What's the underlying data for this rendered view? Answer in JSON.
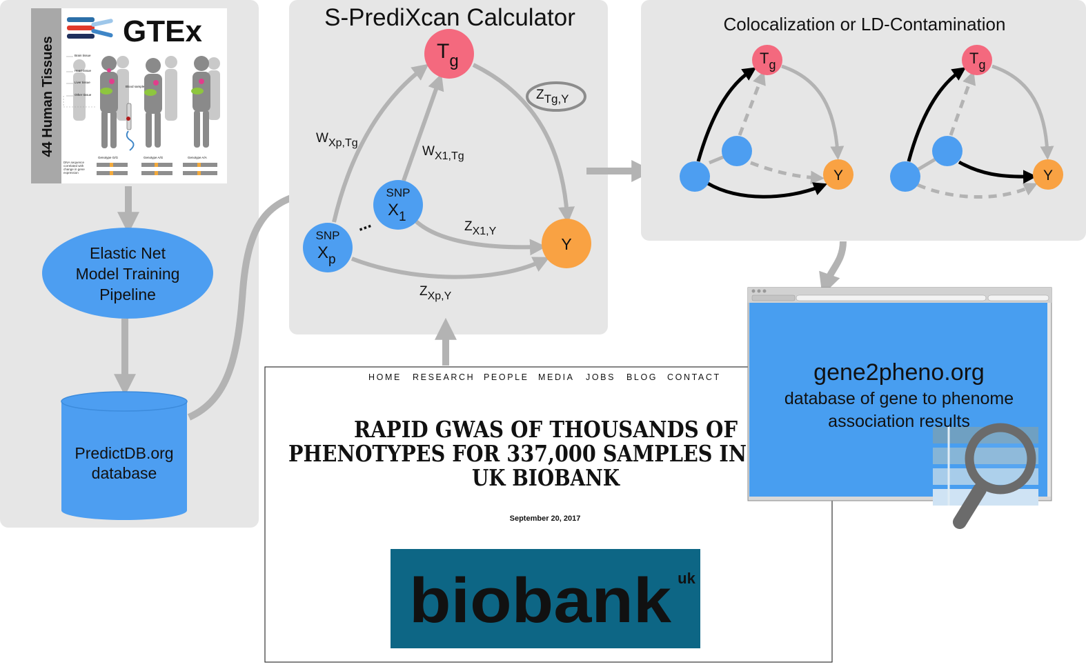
{
  "gtex": {
    "logo_text": "GTEx",
    "side_label": "44 Human Tissues",
    "tissue_labels": [
      "Brain tissue",
      "Heart tissue",
      "Liver tissue",
      "Other tissue"
    ],
    "blood_label": "Blood sample",
    "dna_caption": "DNA sequence correlated with change in gene expression",
    "genotypes": [
      "Genotype G/G",
      "Genotype A/G",
      "Genotype A/A"
    ]
  },
  "pipeline": {
    "elastic_net": [
      "Elastic Net",
      "Model Training",
      "Pipeline"
    ],
    "predictdb": [
      "PredictDB.org",
      "database"
    ]
  },
  "calculator": {
    "title": "S-PrediXcan Calculator",
    "node_tg_main": "T",
    "node_tg_sub": "g",
    "node_x1_top": "SNP",
    "node_x1_main": "X",
    "node_x1_sub": "1",
    "node_xp_top": "SNP",
    "node_xp_main": "X",
    "node_xp_sub": "p",
    "node_y": "Y",
    "dots": "...",
    "w_xp_main": "W",
    "w_xp_sub": "Xp,Tg",
    "w_x1_main": "W",
    "w_x1_sub": "X1,Tg",
    "z_x1_main": "Z",
    "z_x1_sub": "X1,Y",
    "z_xp_main": "Z",
    "z_xp_sub": "Xp,Y",
    "z_tg_main": "Z",
    "z_tg_sub": "Tg,Y"
  },
  "coloc": {
    "title": "Colocalization or LD-Contamination",
    "tg_main": "T",
    "tg_sub": "g",
    "y": "Y"
  },
  "biobank": {
    "nav": [
      "HOME",
      "RESEARCH",
      "PEOPLE",
      "MEDIA",
      "JOBS",
      "BLOG",
      "CONTACT"
    ],
    "headline": [
      "RAPID GWAS OF THOUSANDS OF",
      "PHENOTYPES FOR 337,000 SAMPLES IN",
      "UK BIOBANK"
    ],
    "date": "September 20, 2017",
    "logo_text": "biobank",
    "logo_sup": "uk"
  },
  "gene2pheno": {
    "title": "gene2pheno.org",
    "subtitle": [
      "database of gene to phenome",
      "association results"
    ]
  },
  "colors": {
    "panel": "#e6e6e6",
    "blue": "#4d9ef1",
    "pink": "#f4697e",
    "orange": "#f9a243",
    "arrow_gray": "#b3b3b3",
    "browser_blue": "#489ef0",
    "biobank_teal": "#0d6685"
  },
  "icons": [
    "magnifier-icon",
    "table-icon",
    "dna-helix-icon"
  ]
}
